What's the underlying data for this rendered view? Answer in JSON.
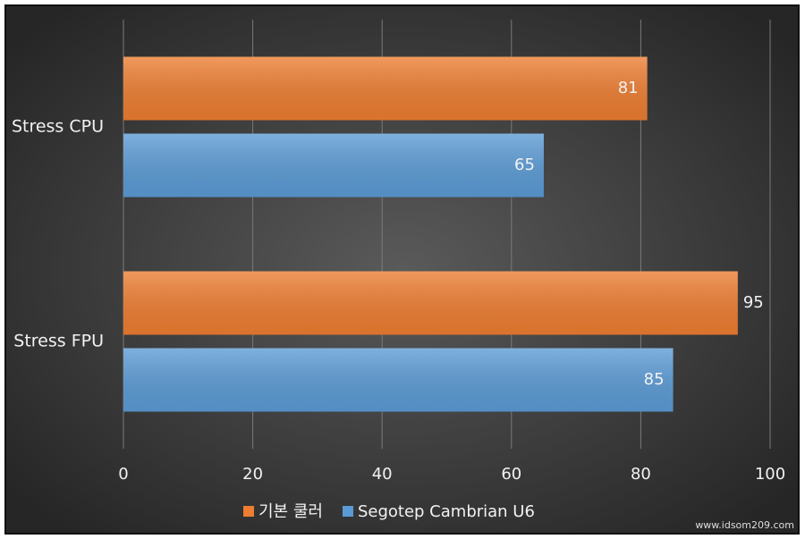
{
  "chart_data": {
    "type": "barh",
    "categories": [
      "Stress CPU",
      "Stress FPU"
    ],
    "series": [
      {
        "name": "기본 쿨러",
        "color": "#ed7d31",
        "values": [
          81,
          95
        ]
      },
      {
        "name": "Segotep Cambrian U6",
        "color": "#5b9bd5",
        "values": [
          65,
          85
        ]
      }
    ],
    "xlim": [
      0,
      100
    ],
    "xticks": [
      0,
      20,
      40,
      60,
      80,
      100
    ],
    "grid": true,
    "legend": "bottom",
    "watermark": "www.idsom209.com"
  }
}
